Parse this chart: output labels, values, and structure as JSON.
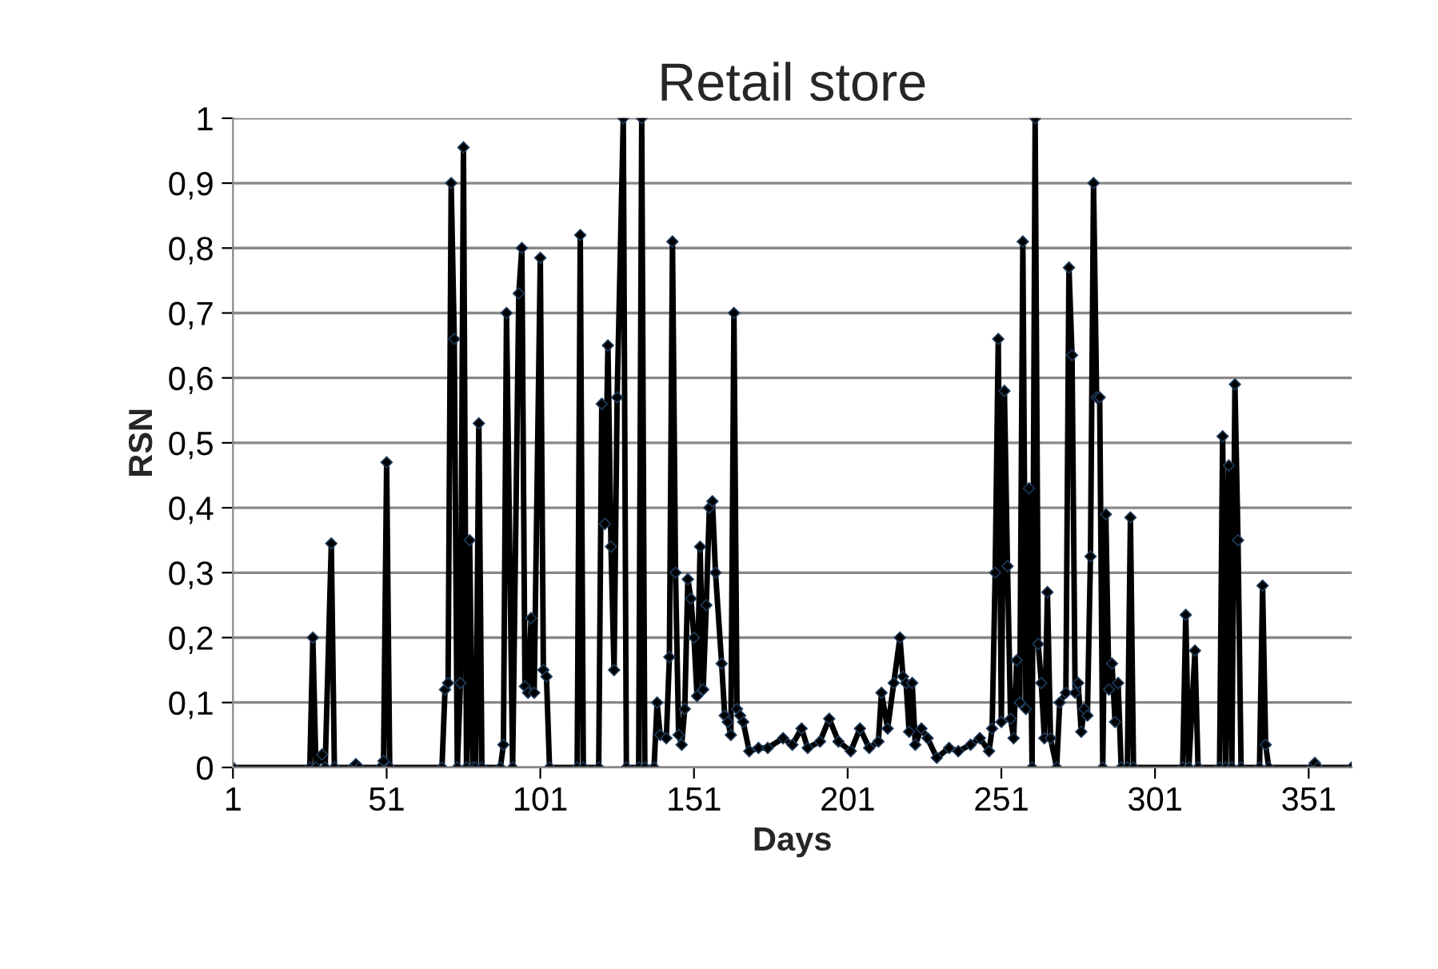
{
  "chart_data": {
    "type": "line",
    "title": "Retail store",
    "xlabel": "Days",
    "ylabel": "RSN",
    "xlim": [
      1,
      365
    ],
    "xticks": [
      1,
      51,
      101,
      151,
      201,
      251,
      301,
      351
    ],
    "ylim": [
      0,
      1
    ],
    "yticks": [
      0,
      {
        "value": 0.1,
        "label": "0,1"
      },
      {
        "value": 0.2,
        "label": "0,2"
      },
      {
        "value": 0.3,
        "label": "0,3"
      },
      {
        "value": 0.4,
        "label": "0,4"
      },
      {
        "value": 0.5,
        "label": "0,5"
      },
      {
        "value": 0.6,
        "label": "0,6"
      },
      {
        "value": 0.7,
        "label": "0,7"
      },
      {
        "value": 0.8,
        "label": "0,8"
      },
      {
        "value": 0.9,
        "label": "0,9"
      },
      1
    ],
    "grid": "y",
    "marker": "diamond",
    "line_style": "solid",
    "series": [
      {
        "color": "#000000",
        "x": [
          1,
          26,
          27,
          28,
          30,
          31,
          33,
          34,
          40,
          41,
          42,
          49,
          50,
          51,
          52,
          69,
          70,
          71,
          72,
          73,
          74,
          75,
          76,
          77,
          78,
          79,
          80,
          81,
          82,
          88,
          89,
          90,
          92,
          94,
          95,
          96,
          97,
          98,
          99,
          101,
          102,
          103,
          104,
          113,
          114,
          115,
          120,
          121,
          122,
          123,
          124,
          125,
          126,
          128,
          129,
          133,
          134,
          135,
          138,
          139,
          140,
          142,
          143,
          144,
          145,
          146,
          147,
          148,
          149,
          150,
          151,
          152,
          153,
          154,
          155,
          156,
          157,
          158,
          160,
          161,
          162,
          163,
          164,
          165,
          166,
          167,
          169,
          172,
          175,
          180,
          183,
          186,
          188,
          192,
          195,
          198,
          202,
          205,
          208,
          211,
          212,
          214,
          216,
          218,
          219,
          220,
          221,
          222,
          223,
          225,
          227,
          230,
          234,
          237,
          241,
          244,
          247,
          248,
          249,
          250,
          251,
          252,
          253,
          254,
          255,
          256,
          257,
          258,
          259,
          260,
          261,
          262,
          263,
          264,
          265,
          266,
          267,
          269,
          270,
          272,
          273,
          274,
          275,
          276,
          277,
          278,
          279,
          280,
          281,
          282,
          283,
          284,
          285,
          286,
          287,
          288,
          289,
          290,
          292,
          293,
          294,
          310,
          311,
          312,
          314,
          315,
          322,
          323,
          324,
          325,
          326,
          327,
          328,
          329,
          335,
          336,
          337,
          338,
          352,
          353,
          354,
          365
        ],
        "values": [
          0,
          0,
          0.2,
          0,
          0.02,
          0,
          0.345,
          0,
          0,
          0.005,
          0,
          0,
          0.01,
          0.47,
          0,
          0,
          0.12,
          0.13,
          0.9,
          0.66,
          0,
          0.13,
          0.955,
          0,
          0.35,
          0,
          0,
          0.53,
          0,
          0,
          0.035,
          0.7,
          0,
          0.73,
          0.8,
          0.125,
          0.115,
          0.23,
          0.115,
          0.785,
          0.15,
          0.14,
          0,
          0,
          0.82,
          0,
          0,
          0.56,
          0.375,
          0.65,
          0.34,
          0.15,
          0.57,
          1,
          0,
          0,
          1,
          0,
          0,
          0.1,
          0.05,
          0.045,
          0.17,
          0.81,
          0.3,
          0.05,
          0.035,
          0.09,
          0.29,
          0.26,
          0.2,
          0.11,
          0.34,
          0.12,
          0.25,
          0.4,
          0.41,
          0.3,
          0.16,
          0.08,
          0.07,
          0.05,
          0.7,
          0.09,
          0.08,
          0.07,
          0.025,
          0.03,
          0.03,
          0.045,
          0.035,
          0.06,
          0.03,
          0.04,
          0.075,
          0.04,
          0.025,
          0.06,
          0.03,
          0.04,
          0.115,
          0.06,
          0.13,
          0.2,
          0.14,
          0.13,
          0.055,
          0.13,
          0.035,
          0.06,
          0.045,
          0.015,
          0.03,
          0.025,
          0.035,
          0.045,
          0.025,
          0.06,
          0.3,
          0.66,
          0.07,
          0.58,
          0.31,
          0.075,
          0.045,
          0.165,
          0.1,
          0.81,
          0.09,
          0.43,
          0,
          1,
          0.19,
          0.13,
          0.045,
          0.27,
          0.045,
          0,
          0.1,
          0.115,
          0.77,
          0.635,
          0.115,
          0.13,
          0.055,
          0.09,
          0.08,
          0.325,
          0.9,
          0.57,
          0.57,
          0,
          0.39,
          0.12,
          0.16,
          0.07,
          0.13,
          0,
          0,
          0.385,
          0,
          0,
          0.235,
          0,
          0.18,
          0,
          0,
          0.51,
          0,
          0.465,
          0,
          0.59,
          0.35,
          0,
          0,
          0.28,
          0.035,
          0,
          0,
          0.007,
          0,
          0
        ]
      }
    ]
  }
}
